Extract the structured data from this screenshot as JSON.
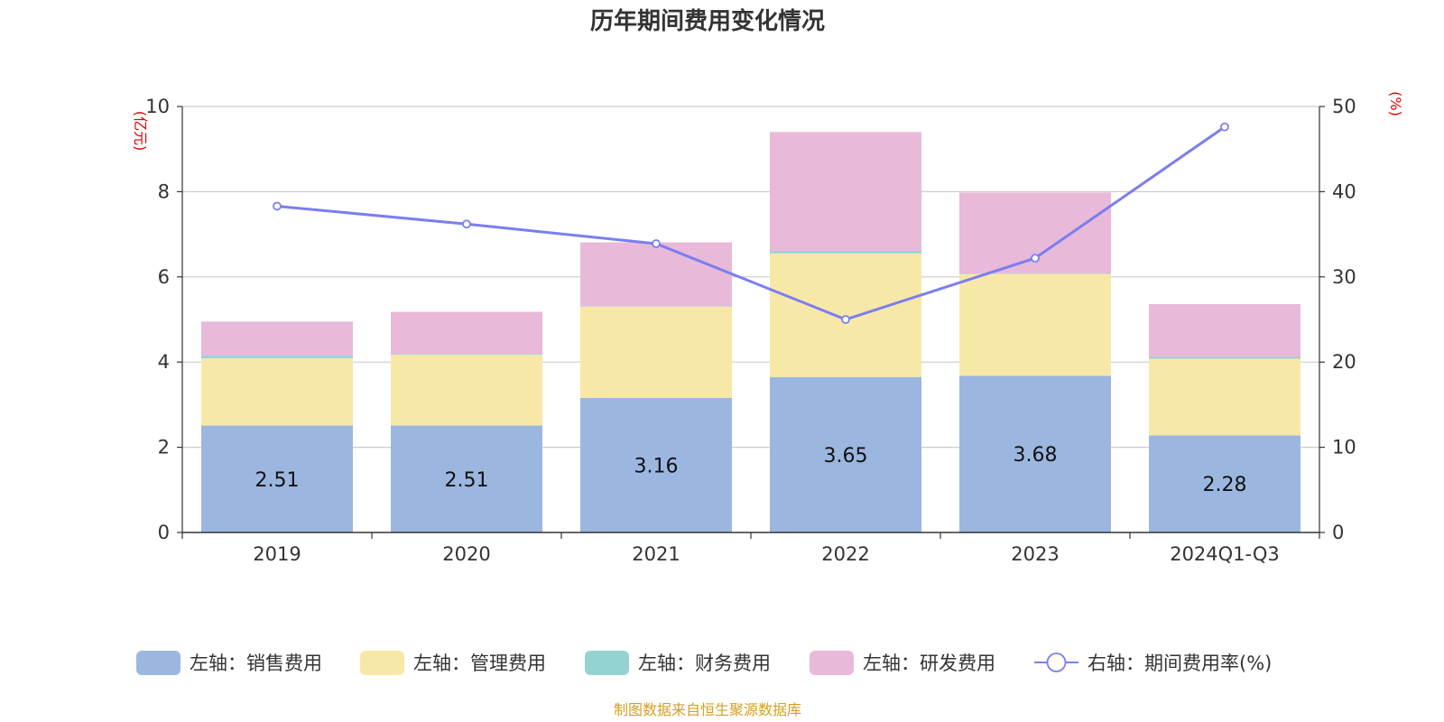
{
  "chart_data": {
    "type": "bar",
    "title": "历年期间费用变化情况",
    "left_unit": "(亿元)",
    "right_unit": "(%)",
    "categories": [
      "2019",
      "2020",
      "2021",
      "2022",
      "2023",
      "2024Q1-Q3"
    ],
    "ylim_left": [
      0,
      10
    ],
    "yticks_left": [
      0,
      2,
      4,
      6,
      8,
      10
    ],
    "ylim_right": [
      0,
      50
    ],
    "yticks_right": [
      0,
      10,
      20,
      30,
      40,
      50
    ],
    "grid": true,
    "legend_position": "bottom",
    "series": [
      {
        "name": "左轴：销售费用",
        "type": "bar",
        "stack": true,
        "color": "#9bb7e0",
        "values": [
          2.51,
          2.51,
          3.16,
          3.65,
          3.68,
          2.28
        ],
        "labels": [
          "2.51",
          "2.51",
          "3.16",
          "3.65",
          "3.68",
          "2.28"
        ]
      },
      {
        "name": "左轴：管理费用",
        "type": "bar",
        "stack": true,
        "color": "#f8e8a8",
        "values": [
          1.58,
          1.66,
          2.14,
          2.9,
          2.39,
          1.8
        ]
      },
      {
        "name": "左轴：财务费用",
        "type": "bar",
        "stack": true,
        "color": "#95d3d3",
        "values": [
          0.06,
          0.02,
          0.01,
          0.05,
          0.01,
          0.04
        ]
      },
      {
        "name": "左轴：研发费用",
        "type": "bar",
        "stack": true,
        "color": "#e8b9d9",
        "values": [
          0.8,
          0.99,
          1.5,
          2.8,
          1.9,
          1.24
        ]
      },
      {
        "name": "右轴：期间费用率(%)",
        "type": "line",
        "axis": "right",
        "color": "#7b7ef0",
        "values": [
          38.3,
          36.2,
          33.9,
          25.0,
          32.2,
          47.6
        ]
      }
    ],
    "source": "制图数据来自恒生聚源数据库"
  }
}
